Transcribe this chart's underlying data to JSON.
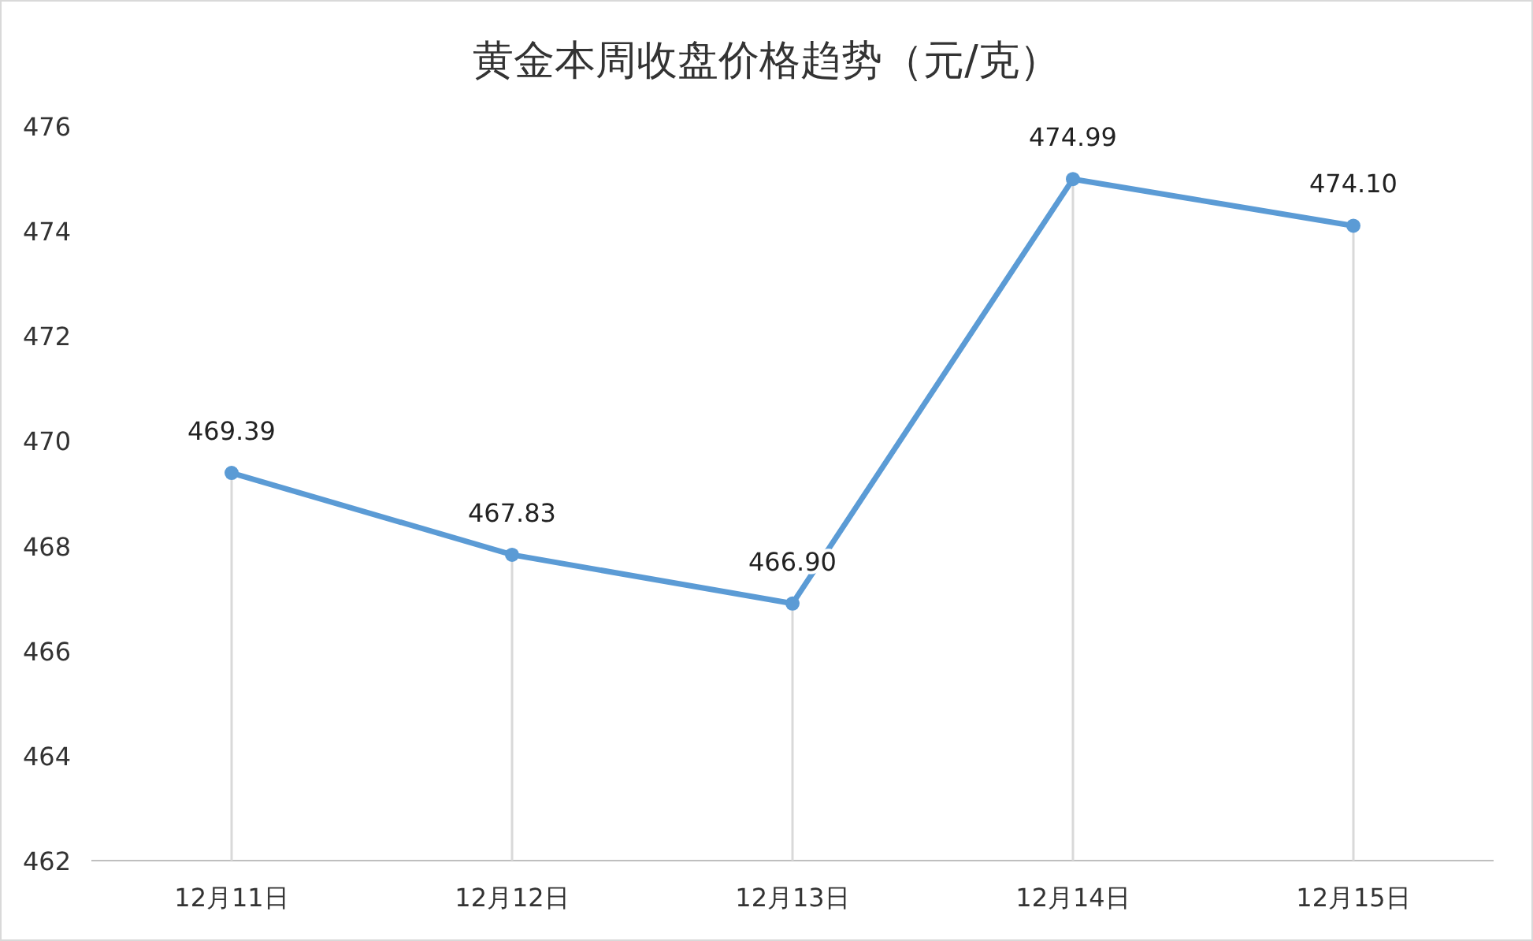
{
  "chart_data": {
    "type": "line",
    "title": "黄金本周收盘价格趋势（元/克）",
    "categories": [
      "12月11日",
      "12月12日",
      "12月13日",
      "12月14日",
      "12月15日"
    ],
    "series": [
      {
        "color": "#5b9bd5",
        "values": [
          469.39,
          467.83,
          466.9,
          474.99,
          474.1
        ]
      }
    ],
    "value_labels": [
      "469.39",
      "467.83",
      "466.90",
      "474.99",
      "474.10"
    ],
    "ylim": [
      462,
      476
    ],
    "yticks": [
      462,
      464,
      466,
      468,
      470,
      472,
      474,
      476
    ],
    "grid": "x",
    "marker": "circle",
    "line_style": "solid"
  }
}
